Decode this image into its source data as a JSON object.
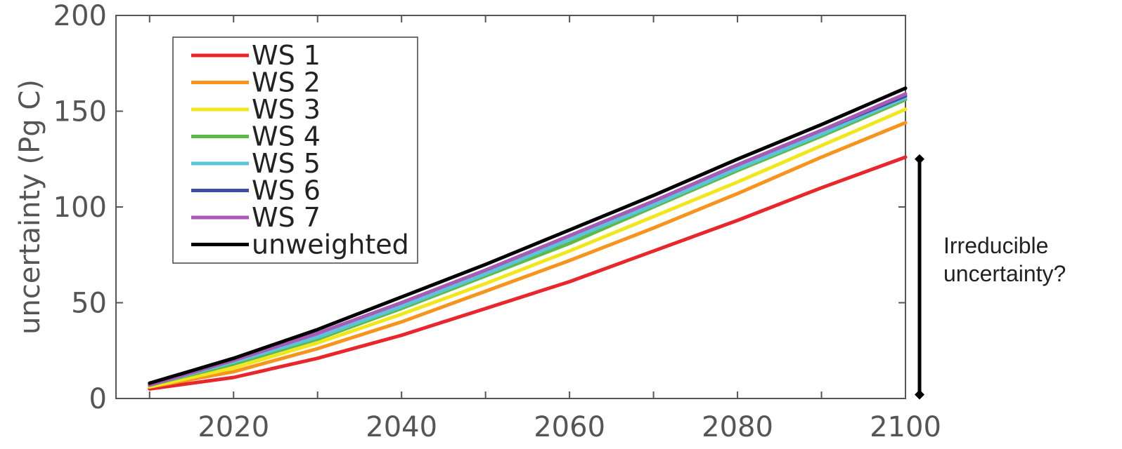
{
  "chart_data": {
    "type": "line",
    "xlabel": "",
    "ylabel": "uncertainty (Pg C)",
    "xlim": [
      2006,
      2100
    ],
    "ylim": [
      0,
      200
    ],
    "xticks": [
      2020,
      2040,
      2060,
      2080,
      2100
    ],
    "yticks": [
      0,
      50,
      100,
      150,
      200
    ],
    "grid": false,
    "legend_position": "top-left",
    "x": [
      2010,
      2020,
      2030,
      2040,
      2050,
      2060,
      2070,
      2080,
      2090,
      2100
    ],
    "series": [
      {
        "name": "WS 1",
        "color": "#e8262b",
        "values": [
          5,
          11,
          21,
          33,
          47,
          61,
          77,
          93,
          110,
          126
        ]
      },
      {
        "name": "WS 2",
        "color": "#f7941d",
        "values": [
          6,
          14,
          26,
          40,
          56,
          72,
          89,
          107,
          126,
          144
        ]
      },
      {
        "name": "WS 3",
        "color": "#f2e61c",
        "values": [
          6,
          16,
          29,
          44,
          60,
          77,
          95,
          113,
          132,
          151
        ]
      },
      {
        "name": "WS 4",
        "color": "#5bbb46",
        "values": [
          7,
          18,
          31,
          47,
          64,
          81,
          100,
          119,
          137,
          156
        ]
      },
      {
        "name": "WS 5",
        "color": "#5bc3dc",
        "values": [
          7,
          19,
          32,
          48,
          65,
          83,
          101,
          120,
          138,
          157
        ]
      },
      {
        "name": "WS 6",
        "color": "#3a4ea3",
        "values": [
          7,
          20,
          34,
          50,
          67,
          85,
          103,
          122,
          140,
          158
        ]
      },
      {
        "name": "WS 7",
        "color": "#a85ab5",
        "values": [
          7,
          20,
          34,
          50,
          67,
          85,
          103,
          122,
          140,
          159
        ]
      },
      {
        "name": "unweighted",
        "color": "#000000",
        "values": [
          8,
          21,
          36,
          53,
          70,
          88,
          106,
          125,
          143,
          162
        ]
      }
    ],
    "annotation": {
      "lines": [
        "Irreducible",
        "uncertainty?"
      ],
      "range": [
        2,
        125
      ]
    }
  }
}
